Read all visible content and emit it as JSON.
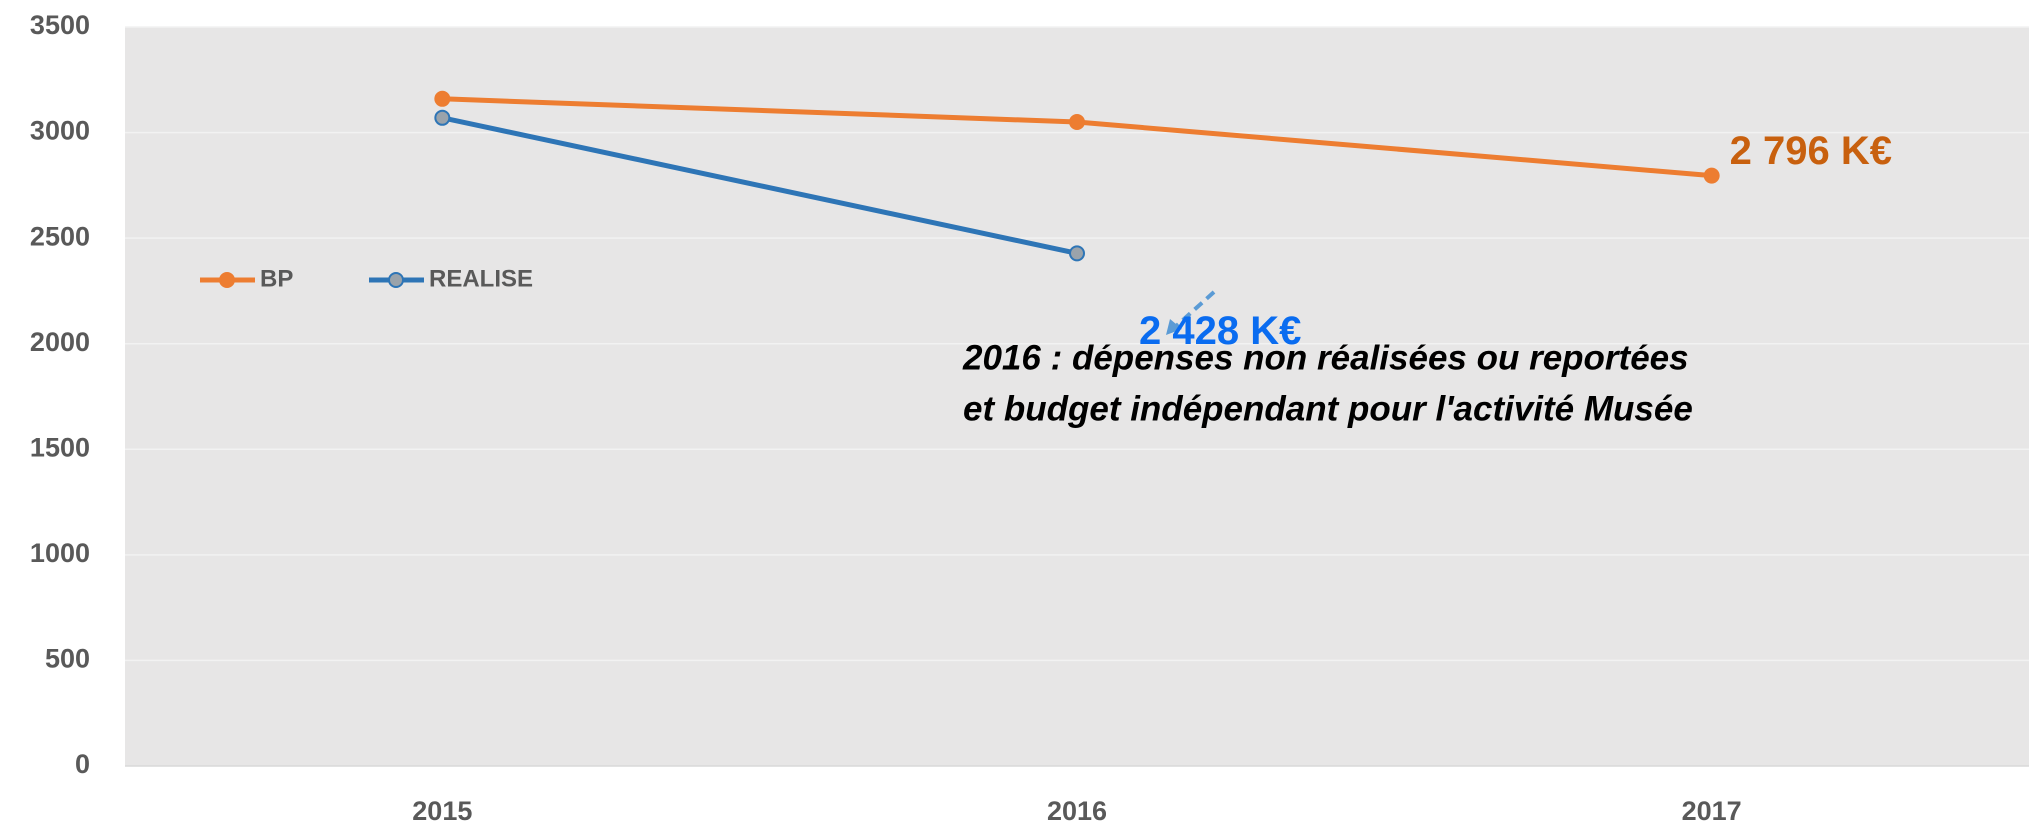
{
  "chart_data": {
    "type": "line",
    "categories": [
      "2015",
      "2016",
      "2017"
    ],
    "series": [
      {
        "name": "BP",
        "color": "#ed7d31",
        "marker_fill": "#ed7d31",
        "label_color": "#c8600e",
        "values": [
          3160,
          3050,
          2796
        ],
        "value_labels": [
          null,
          null,
          "2 796 K€"
        ]
      },
      {
        "name": "REALISE",
        "color": "#2e75b6",
        "marker_fill": "#9aa3ab",
        "label_color": "#0a6cf0",
        "values": [
          3070,
          2428,
          null
        ],
        "value_labels": [
          null,
          "2 428 K€",
          null
        ]
      }
    ],
    "annotation": [
      "2016 : dépenses non réalisées ou reportées",
      "et budget indépendant pour l'activité Musée"
    ],
    "ylim": [
      0,
      3500
    ],
    "yticks": [
      0,
      500,
      1000,
      1500,
      2000,
      2500,
      3000,
      3500
    ],
    "grid": true,
    "legend": "left"
  }
}
